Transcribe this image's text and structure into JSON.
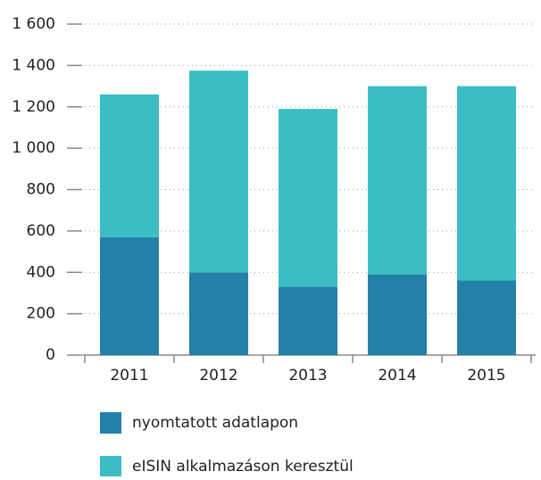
{
  "chart_data": {
    "type": "stacked_bar",
    "categories": [
      "2011",
      "2012",
      "2013",
      "2014",
      "2015"
    ],
    "series": [
      {
        "name": "nyomtatott adatlapon",
        "color": "#2381a7",
        "values": [
          570,
          400,
          330,
          390,
          360
        ]
      },
      {
        "name": "eISIN alkalmazáson keresztül",
        "color": "#3bbec3",
        "values": [
          690,
          975,
          860,
          910,
          940
        ]
      }
    ],
    "ylim": [
      0,
      1600
    ],
    "yticks": [
      0,
      200,
      400,
      600,
      800,
      {
        "value": 1000,
        "label": "1 000"
      },
      {
        "value": 1200,
        "label": "1 200"
      },
      {
        "value": 1400,
        "label": "1 400"
      },
      {
        "value": 1600,
        "label": "1 600"
      }
    ],
    "grid": true
  }
}
